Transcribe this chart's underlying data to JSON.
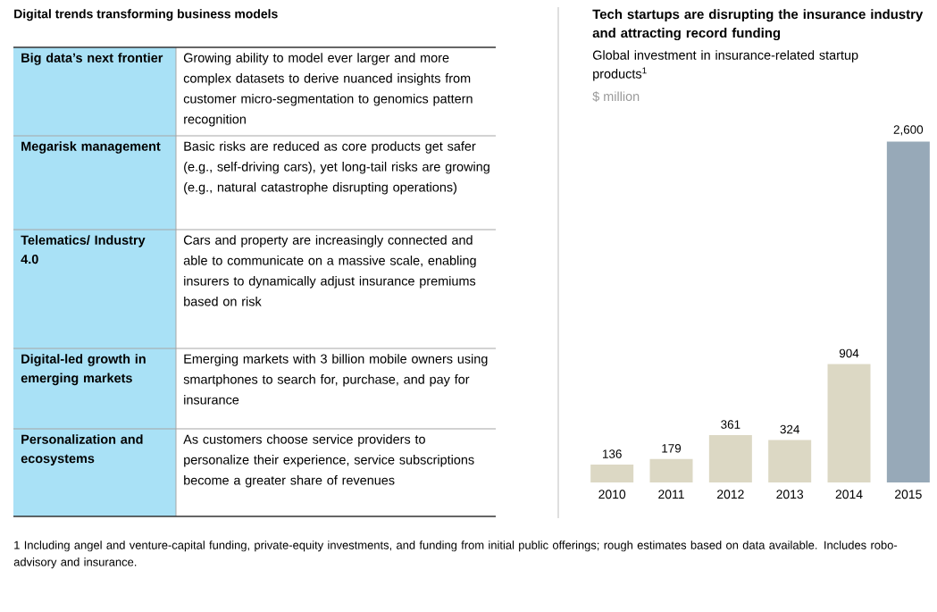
{
  "chart_data": [
    {
      "type": "other",
      "title": "Digital trends transforming business models",
      "annotations": [
        "Big data’s next frontier",
        "Growing ability to model ever larger and more complex datasets to derive nuanced insights from customer micro-segmentation to genomics pattern recognition",
        "Megarisk management",
        "Basic risks are reduced as core products get safer (e.g., self-driving cars), yet long-tail risks are growing (e.g., natural catastrophe disrupting operations)",
        "Telematics/ Industry 4.0",
        "Cars and property are increasingly connected and able to communicate on a massive scale, enabling insurers to dynamically adjust insurance premiums based on risk",
        "Digital-led growth in emerging markets",
        "Emerging markets with 3 billion mobile owners using smartphones to search for, purchase, and pay for insurance",
        "Personalization and ecosystems",
        "As customers choose service providers to personalize their experience, service subscriptions become a greater share of revenues"
      ]
    },
    {
      "type": "bar",
      "title": "Tech startups are disrupting the insurance industry and attracting record funding",
      "subtitle": "Global investment in insurance-related startup products$^{1}$",
      "ylabel": "$ million",
      "categories": [
        "2010",
        "2011",
        "2012",
        "2013",
        "2014",
        "2015"
      ],
      "values": [
        136,
        179,
        361,
        324,
        904,
        2600
      ],
      "colors": [
        "#dcd8c4",
        "#dcd8c4",
        "#dcd8c4",
        "#dcd8c4",
        "#dcd8c4",
        "#97a9b8"
      ],
      "value_labels": [
        "136",
        "179",
        "361",
        "324",
        "904",
        "2,600"
      ],
      "annotations": [
        "1 Including angel and venture-capital funding, private-equity investments, and funding from initial public offerings; rough estimates based on data available. Includes robo-advisory and insurance."
      ]
    }
  ]
}
